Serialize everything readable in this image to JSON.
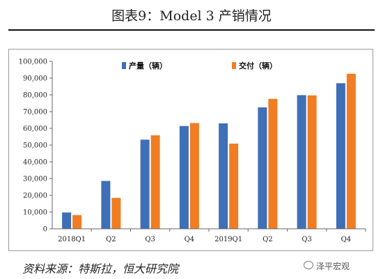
{
  "figure": {
    "title": "图表9：Model 3 产销情况",
    "source": "资料来源：特斯拉，恒大研究院",
    "watermark": "泽平宏观"
  },
  "colors": {
    "production": "#3f6fb6",
    "delivery": "#f07d22"
  },
  "chart_data": {
    "type": "bar",
    "title": "",
    "xlabel": "",
    "ylabel": "",
    "categories": [
      "2018Q1",
      "Q2",
      "Q3",
      "Q4",
      "2019Q1",
      "Q2",
      "Q3",
      "Q4"
    ],
    "series": [
      {
        "name": "产量（辆）",
        "values": [
          9766,
          28578,
          53239,
          61394,
          62975,
          72531,
          79837,
          86958
        ]
      },
      {
        "name": "交付（辆）",
        "values": [
          8180,
          18449,
          55840,
          63150,
          50900,
          77634,
          79703,
          92620
        ]
      }
    ],
    "ylim": [
      0,
      100000
    ],
    "yticks": [
      0,
      10000,
      20000,
      30000,
      40000,
      50000,
      60000,
      70000,
      80000,
      90000,
      100000
    ],
    "ytick_labels": [
      "0",
      "10,000",
      "20,000",
      "30,000",
      "40,000",
      "50,000",
      "60,000",
      "70,000",
      "80,000",
      "90,000",
      "100,000"
    ],
    "legend": "top",
    "grid": false
  }
}
